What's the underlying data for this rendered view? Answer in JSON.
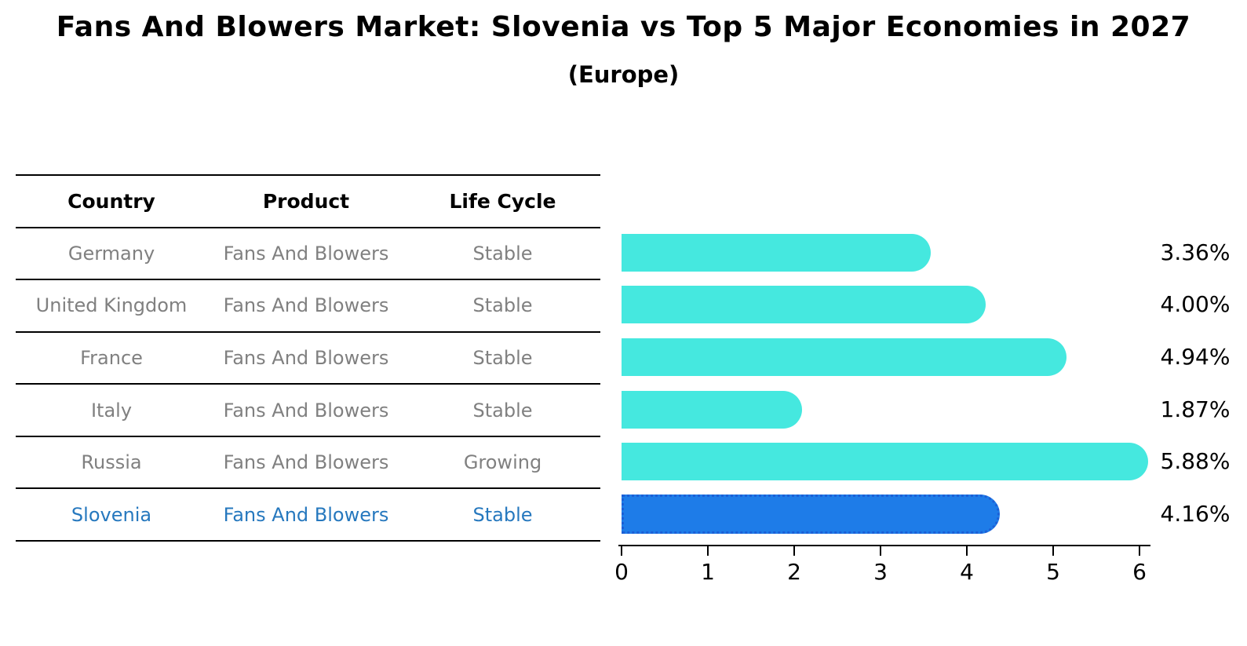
{
  "title": "Fans And Blowers Market: Slovenia vs Top 5 Major Economies in 2027",
  "subtitle": "(Europe)",
  "colors": {
    "bar_default": "#45E8DF",
    "bar_highlight_fill": "#1E7CE8",
    "bar_highlight_edge": "#1C5FD6",
    "table_text": "#808080",
    "highlight_text": "#2678BE",
    "header_text": "#000000",
    "axis": "#000000"
  },
  "table": {
    "headers": [
      "Country",
      "Product",
      "Life Cycle"
    ]
  },
  "chart_data": {
    "type": "bar",
    "orientation": "horizontal",
    "title": "Fans And Blowers Market: Slovenia vs Top 5 Major Economies in 2027",
    "subtitle": "(Europe)",
    "categories": [
      "Germany",
      "United Kingdom",
      "France",
      "Italy",
      "Russia",
      "Slovenia"
    ],
    "values": [
      3.36,
      4.0,
      4.94,
      1.87,
      5.88,
      4.16
    ],
    "value_labels": [
      "3.36%",
      "4.00%",
      "4.94%",
      "1.87%",
      "5.88%",
      "4.16%"
    ],
    "xlim": [
      0,
      6.15
    ],
    "xticks": [
      0,
      1,
      2,
      3,
      4,
      5,
      6
    ],
    "grid": false,
    "legend": "none",
    "highlight_index": 5,
    "rows": [
      {
        "country": "Germany",
        "product": "Fans And Blowers",
        "life_cycle": "Stable",
        "value": 3.36,
        "label": "3.36%",
        "highlighted": false
      },
      {
        "country": "United Kingdom",
        "product": "Fans And Blowers",
        "life_cycle": "Stable",
        "value": 4.0,
        "label": "4.00%",
        "highlighted": false
      },
      {
        "country": "France",
        "product": "Fans And Blowers",
        "life_cycle": "Stable",
        "value": 4.94,
        "label": "4.94%",
        "highlighted": false
      },
      {
        "country": "Italy",
        "product": "Fans And Blowers",
        "life_cycle": "Stable",
        "value": 1.87,
        "label": "1.87%",
        "highlighted": false
      },
      {
        "country": "Russia",
        "product": "Fans And Blowers",
        "life_cycle": "Growing",
        "value": 5.88,
        "label": "5.88%",
        "highlighted": false
      },
      {
        "country": "Slovenia",
        "product": "Fans And Blowers",
        "life_cycle": "Stable",
        "value": 4.16,
        "label": "4.16%",
        "highlighted": true
      }
    ]
  }
}
